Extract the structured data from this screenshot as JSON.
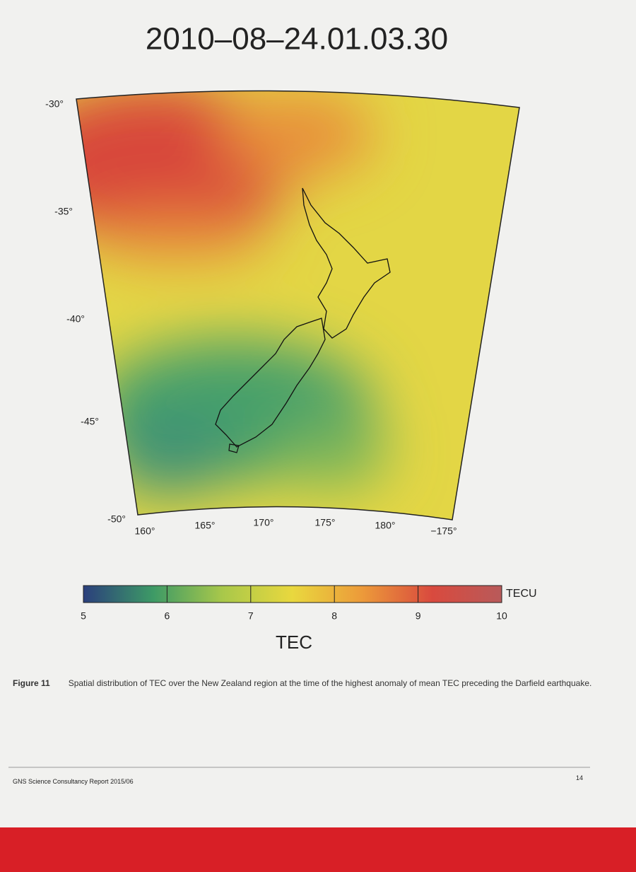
{
  "title": "2010–08–24.01.03.30",
  "map": {
    "lat_labels": [
      "-30°",
      "-35°",
      "-40°",
      "-45°",
      "-50°"
    ],
    "lon_labels": [
      "160°",
      "165°",
      "170°",
      "175°",
      "180°",
      "−175°"
    ]
  },
  "colorbar": {
    "unit": "TECU",
    "label": "TEC",
    "range": [
      5,
      10
    ],
    "ticks": [
      5,
      6,
      7,
      8,
      9,
      10
    ],
    "colors": [
      "#2b3f7c",
      "#3d9a66",
      "#a9c84a",
      "#e9d83e",
      "#ec9a3a",
      "#d94a3e",
      "#b85a5a"
    ]
  },
  "caption": {
    "label": "Figure 11",
    "text": "Spatial distribution of TEC over the New Zealand region at the time of the highest anomaly of mean TEC preceding the Darfield earthquake."
  },
  "footer": {
    "report": "GNS Science Consultancy Report 2015/06",
    "page": "14"
  }
}
